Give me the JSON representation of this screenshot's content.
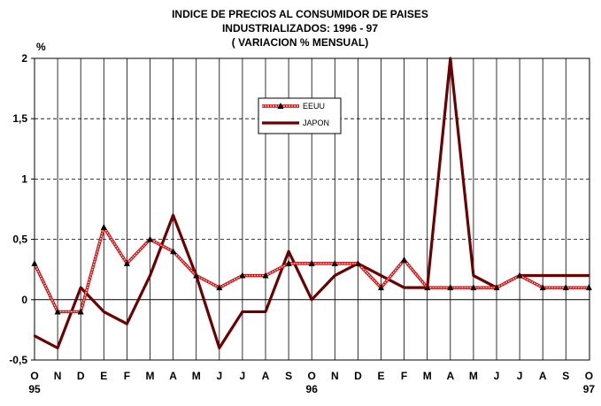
{
  "chart_data": {
    "type": "line",
    "title": [
      "INDICE DE PRECIOS AL CONSUMIDOR DE PAISES",
      "INDUSTRIALIZADOS: 1996 - 97",
      "( VARIACION % MENSUAL)"
    ],
    "ylabel": "%",
    "ylim": [
      -0.5,
      2
    ],
    "yticks": [
      "-0,5",
      "0",
      "0,5",
      "1",
      "1,5",
      "2"
    ],
    "ytick_values": [
      -0.5,
      0,
      0.5,
      1,
      1.5,
      2
    ],
    "categories": [
      "O",
      "N",
      "D",
      "E",
      "F",
      "M",
      "A",
      "M",
      "J",
      "J",
      "A",
      "S",
      "O",
      "N",
      "D",
      "E",
      "F",
      "M",
      "A",
      "M",
      "J",
      "J",
      "A",
      "S",
      "O"
    ],
    "year_labels": [
      {
        "index": 0,
        "label": "95"
      },
      {
        "index": 12,
        "label": "96"
      },
      {
        "index": 24,
        "label": "97"
      }
    ],
    "grid": "vertical solid, horizontal dashed",
    "legend_position": "top-center",
    "series": [
      {
        "name": "EEUU",
        "color": "#cc0000",
        "marker": "triangle",
        "values": [
          0.3,
          -0.1,
          -0.1,
          0.6,
          0.3,
          0.5,
          0.4,
          0.2,
          0.1,
          0.2,
          0.2,
          0.3,
          0.3,
          0.3,
          0.3,
          0.1,
          0.33,
          0.1,
          0.1,
          0.1,
          0.1,
          0.2,
          0.1,
          0.1,
          0.1
        ]
      },
      {
        "name": "JAPON",
        "color": "#6b0000",
        "marker": "none",
        "values": [
          -0.3,
          -0.4,
          0.1,
          -0.1,
          -0.2,
          0.2,
          0.7,
          0.2,
          -0.4,
          -0.1,
          -0.1,
          0.4,
          0.0,
          0.2,
          0.3,
          0.2,
          0.1,
          0.1,
          2.0,
          0.2,
          0.1,
          0.2,
          0.2,
          0.2,
          0.2
        ]
      }
    ]
  }
}
